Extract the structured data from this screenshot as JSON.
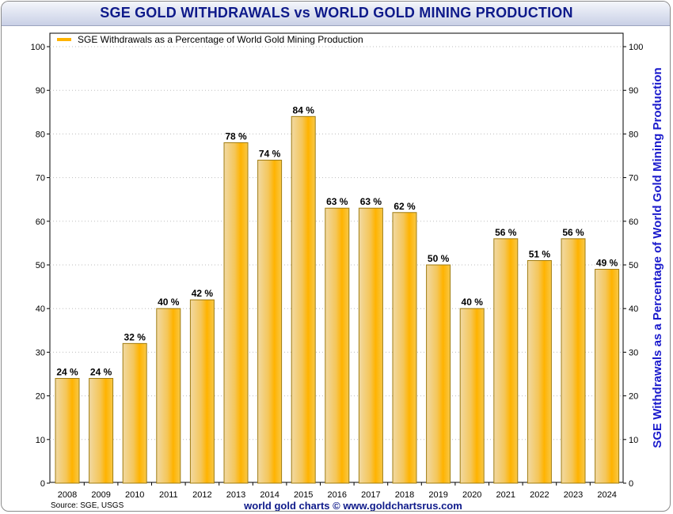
{
  "chart_data": {
    "type": "bar",
    "title": "SGE GOLD WITHDRAWALS vs WORLD GOLD MINING PRODUCTION",
    "categories": [
      "2008",
      "2009",
      "2010",
      "2011",
      "2012",
      "2013",
      "2014",
      "2015",
      "2016",
      "2017",
      "2018",
      "2019",
      "2020",
      "2021",
      "2022",
      "2023",
      "2024"
    ],
    "series": [
      {
        "name": "SGE Withdrawals as a Percentage of World Gold Mining Production",
        "values": [
          24,
          24,
          32,
          40,
          42,
          78,
          74,
          84,
          63,
          63,
          62,
          50,
          40,
          56,
          51,
          56,
          49
        ],
        "data_labels": [
          "24 %",
          "24 %",
          "32 %",
          "40 %",
          "42 %",
          "78 %",
          "74 %",
          "84 %",
          "63 %",
          "63 %",
          "62 %",
          "50 %",
          "40 %",
          "56 %",
          "51 %",
          "56 %",
          "49 %"
        ]
      }
    ],
    "xlabel": "",
    "ylabel_right": "SGE Withdrawals as a Percentage of World Gold Mining Production",
    "ylim": [
      0,
      100
    ],
    "yticks": [
      0,
      10,
      20,
      30,
      40,
      50,
      60,
      70,
      80,
      90,
      100
    ],
    "grid": "horizontal",
    "legend_position": "top-left",
    "colors": {
      "bar": "#ffb300",
      "bar_light": "#f1d9a3",
      "bar_edge": "#a07c10",
      "title": "#0e1a8a",
      "right_label": "#1a1acc"
    }
  },
  "footer": {
    "source": "Source: SGE, USGS",
    "credit": "world gold charts © www.goldchartsrus.com"
  }
}
